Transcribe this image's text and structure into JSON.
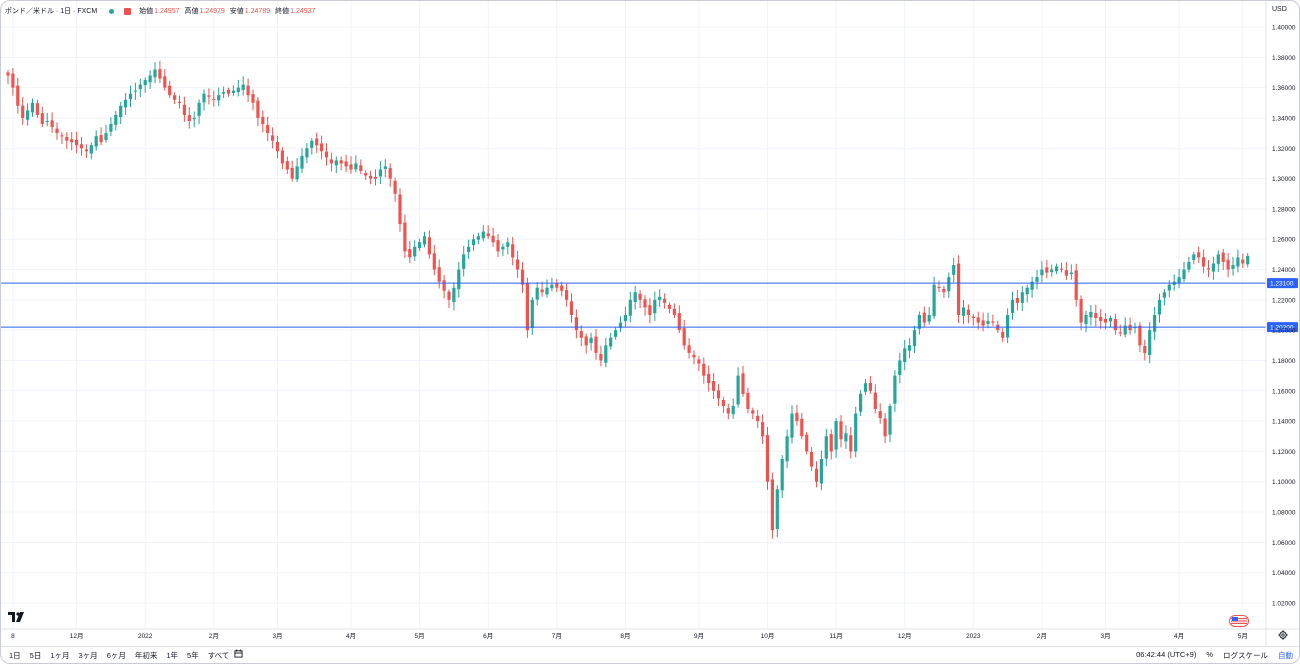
{
  "legend": {
    "symbol": "ポンド／米ドル · 1日 · FXCM",
    "open_label": "始値",
    "open": "1.24957",
    "high_label": "高値",
    "high": "1.24979",
    "low_label": "安値",
    "low": "1.24789",
    "close_label": "終値",
    "close": "1.24937"
  },
  "colors": {
    "up": "#26a69a",
    "down": "#ef5350",
    "hline": "#2962ff",
    "grid": "#f0f3fa",
    "axis_text": "#131722"
  },
  "ranges": [
    "1日",
    "5日",
    "1ヶ月",
    "3ヶ月",
    "6ヶ月",
    "年初来",
    "1年",
    "5年",
    "すべて"
  ],
  "bottom_right": {
    "time": "06:42:44 (UTC+9)",
    "percent": "%",
    "log": "ログスケール",
    "auto": "自動"
  },
  "icons": {
    "calendar": "calendar-range-icon",
    "gear": "gear-icon",
    "logo": "tradingview-logo",
    "flag": "us-flag-icon"
  },
  "chart_data": {
    "type": "candlestick",
    "currency_label": "USD",
    "ylim": [
      1.01,
      1.41
    ],
    "y_ticks": [
      "1.40000",
      "1.38000",
      "1.36000",
      "1.34000",
      "1.32000",
      "1.30000",
      "1.28000",
      "1.26000",
      "1.24000",
      "1.22000",
      "1.20000",
      "1.18000",
      "1.16000",
      "1.14000",
      "1.12000",
      "1.10000",
      "1.08000",
      "1.06000",
      "1.04000",
      "1.02000"
    ],
    "x_ticks": [
      {
        "label": "8",
        "idx": 1
      },
      {
        "label": "12月",
        "idx": 14
      },
      {
        "label": "2022",
        "idx": 28
      },
      {
        "label": "2月",
        "idx": 42
      },
      {
        "label": "3月",
        "idx": 55
      },
      {
        "label": "4月",
        "idx": 70
      },
      {
        "label": "5月",
        "idx": 84
      },
      {
        "label": "6月",
        "idx": 98
      },
      {
        "label": "7月",
        "idx": 112
      },
      {
        "label": "8月",
        "idx": 126
      },
      {
        "label": "9月",
        "idx": 141
      },
      {
        "label": "10月",
        "idx": 155
      },
      {
        "label": "11月",
        "idx": 169
      },
      {
        "label": "12月",
        "idx": 183
      },
      {
        "label": "2023",
        "idx": 197
      },
      {
        "label": "2月",
        "idx": 211
      },
      {
        "label": "3月",
        "idx": 224
      },
      {
        "label": "4月",
        "idx": 239
      },
      {
        "label": "5月",
        "idx": 252
      }
    ],
    "horizontal_lines": [
      {
        "value": 1.231,
        "label": "1.23100"
      },
      {
        "value": 1.202,
        "label": "1.20200"
      }
    ],
    "close_path": [
      1.368,
      1.36,
      1.348,
      1.34,
      1.345,
      1.35,
      1.342,
      1.336,
      1.338,
      1.334,
      1.33,
      1.328,
      1.325,
      1.324,
      1.322,
      1.32,
      1.318,
      1.322,
      1.328,
      1.324,
      1.33,
      1.336,
      1.342,
      1.348,
      1.352,
      1.356,
      1.358,
      1.362,
      1.365,
      1.368,
      1.372,
      1.366,
      1.36,
      1.355,
      1.352,
      1.35,
      1.342,
      1.338,
      1.34,
      1.35,
      1.356,
      1.354,
      1.352,
      1.355,
      1.357,
      1.356,
      1.358,
      1.36,
      1.362,
      1.355,
      1.35,
      1.34,
      1.336,
      1.33,
      1.325,
      1.318,
      1.31,
      1.306,
      1.3,
      1.308,
      1.315,
      1.32,
      1.325,
      1.322,
      1.318,
      1.314,
      1.31,
      1.312,
      1.31,
      1.308,
      1.306,
      1.31,
      1.305,
      1.302,
      1.3,
      1.3,
      1.306,
      1.308,
      1.3,
      1.29,
      1.27,
      1.252,
      1.248,
      1.255,
      1.258,
      1.262,
      1.25,
      1.24,
      1.232,
      1.226,
      1.22,
      1.228,
      1.24,
      1.25,
      1.255,
      1.26,
      1.262,
      1.265,
      1.262,
      1.258,
      1.252,
      1.255,
      1.258,
      1.248,
      1.24,
      1.23,
      1.2,
      1.22,
      1.228,
      1.225,
      1.228,
      1.23,
      1.228,
      1.226,
      1.22,
      1.21,
      1.2,
      1.195,
      1.19,
      1.195,
      1.185,
      1.18,
      1.19,
      1.195,
      1.2,
      1.205,
      1.21,
      1.22,
      1.225,
      1.22,
      1.215,
      1.21,
      1.22,
      1.222,
      1.218,
      1.214,
      1.21,
      1.2,
      1.19,
      1.185,
      1.182,
      1.178,
      1.17,
      1.165,
      1.16,
      1.155,
      1.15,
      1.145,
      1.15,
      1.17,
      1.158,
      1.148,
      1.145,
      1.14,
      1.13,
      1.1,
      1.068,
      1.095,
      1.115,
      1.13,
      1.145,
      1.14,
      1.13,
      1.12,
      1.11,
      1.1,
      1.115,
      1.13,
      1.12,
      1.14,
      1.128,
      1.132,
      1.12,
      1.145,
      1.158,
      1.165,
      1.16,
      1.148,
      1.142,
      1.13,
      1.15,
      1.17,
      1.18,
      1.188,
      1.19,
      1.2,
      1.21,
      1.205,
      1.21,
      1.23,
      1.228,
      1.225,
      1.235,
      1.243,
      1.21,
      1.215,
      1.21,
      1.208,
      1.205,
      1.203,
      1.206,
      1.205,
      1.2,
      1.195,
      1.21,
      1.22,
      1.218,
      1.225,
      1.228,
      1.232,
      1.235,
      1.24,
      1.238,
      1.24,
      1.242,
      1.24,
      1.236,
      1.238,
      1.22,
      1.205,
      1.21,
      1.212,
      1.208,
      1.206,
      1.205,
      1.208,
      1.2,
      1.198,
      1.203,
      1.2,
      1.202,
      1.19,
      1.185,
      1.2,
      1.21,
      1.22,
      1.225,
      1.23,
      1.232,
      1.235,
      1.24,
      1.245,
      1.25,
      1.248,
      1.242,
      1.24,
      1.244,
      1.25,
      1.245,
      1.24,
      1.243,
      1.248,
      1.244,
      1.249
    ]
  }
}
